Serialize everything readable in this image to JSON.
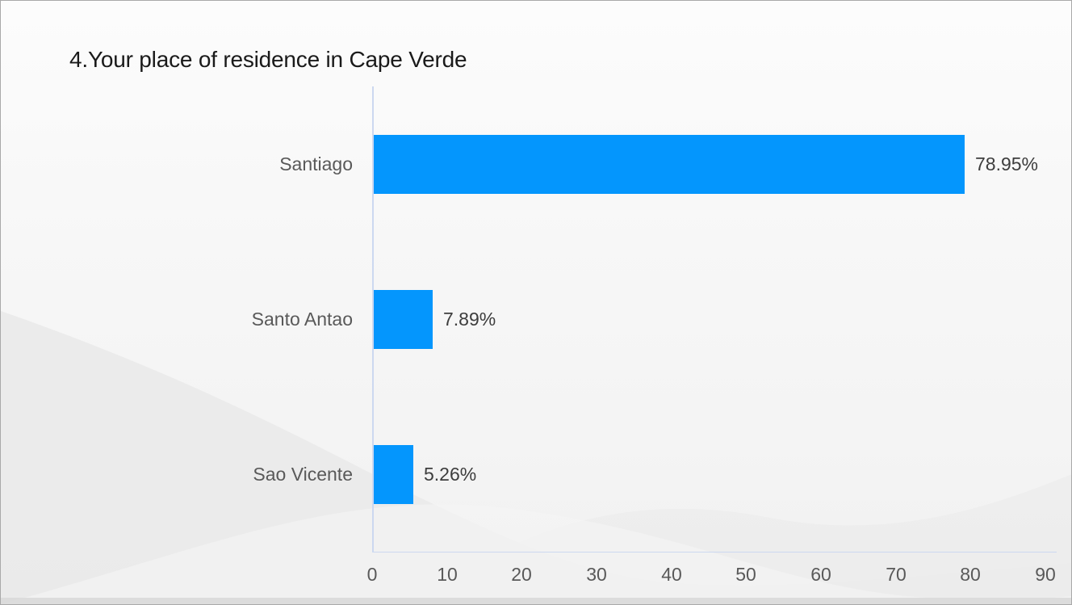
{
  "chart_data": {
    "type": "bar",
    "orientation": "horizontal",
    "title": "4.Your place of residence in Cape Verde",
    "categories": [
      "Santiago",
      "Santo Antao",
      "Sao Vicente"
    ],
    "values": [
      78.95,
      7.89,
      5.26
    ],
    "data_labels": [
      "78.95%",
      "7.89%",
      "5.26%"
    ],
    "xlabel": "",
    "ylabel": "",
    "xlim": [
      0,
      90
    ],
    "xticks": [
      "0",
      "10",
      "20",
      "30",
      "40",
      "50",
      "60",
      "70",
      "80",
      "90"
    ],
    "grid": false,
    "legend": false,
    "colors": {
      "bar": "#0496fd",
      "axis_line": "#ccd8f0",
      "category_label": "#595959",
      "value_label": "#3d3d3d",
      "tick_label": "#595959",
      "title": "#1a1a1a"
    }
  }
}
